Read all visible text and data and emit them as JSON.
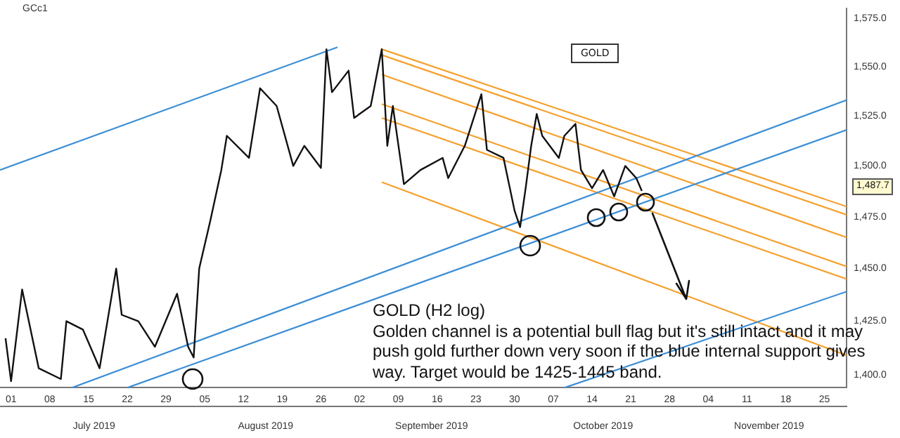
{
  "chart_data": {
    "type": "line",
    "title": "GCc1",
    "log": "y",
    "marker": "none",
    "xlim": [
      "2019-06-29",
      "2019-11-29"
    ],
    "ylim": [
      1394,
      1580
    ],
    "xticks": [
      {
        "value": "2019-07-01",
        "label": "01"
      },
      {
        "value": "2019-07-08",
        "label": "08"
      },
      {
        "value": "2019-07-15",
        "label": "15"
      },
      {
        "value": "2019-07-22",
        "label": "22"
      },
      {
        "value": "2019-07-29",
        "label": "29"
      },
      {
        "value": "2019-08-05",
        "label": "05"
      },
      {
        "value": "2019-08-12",
        "label": "12"
      },
      {
        "value": "2019-08-19",
        "label": "19"
      },
      {
        "value": "2019-08-26",
        "label": "26"
      },
      {
        "value": "2019-09-02",
        "label": "02"
      },
      {
        "value": "2019-09-09",
        "label": "09"
      },
      {
        "value": "2019-09-16",
        "label": "16"
      },
      {
        "value": "2019-09-23",
        "label": "23"
      },
      {
        "value": "2019-09-30",
        "label": "30"
      },
      {
        "value": "2019-10-07",
        "label": "07"
      },
      {
        "value": "2019-10-14",
        "label": "14"
      },
      {
        "value": "2019-10-21",
        "label": "21"
      },
      {
        "value": "2019-10-28",
        "label": "28"
      },
      {
        "value": "2019-11-04",
        "label": "04"
      },
      {
        "value": "2019-11-11",
        "label": "11"
      },
      {
        "value": "2019-11-18",
        "label": "18"
      },
      {
        "value": "2019-11-25",
        "label": "25"
      }
    ],
    "x2lim": [
      "2019-06-29",
      "2019-11-29"
    ],
    "x2ticks": [
      {
        "value": "2019-07-16",
        "label": "July 2019"
      },
      {
        "value": "2019-08-16",
        "label": "August 2019"
      },
      {
        "value": "2019-09-15",
        "label": "September 2019"
      },
      {
        "value": "2019-10-16",
        "label": "October 2019"
      },
      {
        "value": "2019-11-15",
        "label": "November 2019"
      }
    ],
    "yticks": [
      {
        "value": 1400,
        "label": "1,400.0"
      },
      {
        "value": 1425,
        "label": "1,425.0"
      },
      {
        "value": 1450,
        "label": "1,450.0"
      },
      {
        "value": 1475,
        "label": "1,475.0"
      },
      {
        "value": 1500,
        "label": "1,500.0"
      },
      {
        "value": 1525,
        "label": "1,525.0"
      },
      {
        "value": 1550,
        "label": "1,550.0"
      },
      {
        "value": 1575,
        "label": "1,575.0"
      }
    ],
    "series": [
      {
        "color": "#111111",
        "x": [
          "2019-06-30",
          "2019-07-01",
          "2019-07-03",
          "2019-07-06",
          "2019-07-10",
          "2019-07-11",
          "2019-07-14",
          "2019-07-17",
          "2019-07-20",
          "2019-07-21",
          "2019-07-24",
          "2019-07-27",
          "2019-07-31",
          "2019-08-02",
          "2019-08-03",
          "2019-08-04",
          "2019-08-06",
          "2019-08-08",
          "2019-08-09",
          "2019-08-13",
          "2019-08-15",
          "2019-08-18",
          "2019-08-21",
          "2019-08-23",
          "2019-08-26",
          "2019-08-27",
          "2019-08-28",
          "2019-08-31",
          "2019-09-01",
          "2019-09-04",
          "2019-09-06",
          "2019-09-07",
          "2019-09-08",
          "2019-09-10",
          "2019-09-13",
          "2019-09-17",
          "2019-09-18",
          "2019-09-21",
          "2019-09-24",
          "2019-09-25",
          "2019-09-28",
          "2019-09-30",
          "2019-10-01",
          "2019-10-02",
          "2019-10-03",
          "2019-10-04",
          "2019-10-05",
          "2019-10-08",
          "2019-10-09",
          "2019-10-11",
          "2019-10-12",
          "2019-10-14",
          "2019-10-16",
          "2019-10-18",
          "2019-10-20",
          "2019-10-22",
          "2019-10-23"
        ],
        "values": [
          1417,
          1397,
          1440,
          1403,
          1398,
          1425,
          1421,
          1403,
          1450,
          1428,
          1425,
          1413,
          1438,
          1413,
          1408,
          1450,
          1473,
          1498,
          1515,
          1504,
          1539,
          1530,
          1500,
          1510,
          1499,
          1559,
          1537,
          1548,
          1524,
          1530,
          1559,
          1510,
          1530,
          1491,
          1498,
          1504,
          1494,
          1510,
          1536,
          1508,
          1504,
          1478,
          1470,
          1489,
          1510,
          1526,
          1515,
          1504,
          1515,
          1521,
          1498,
          1489,
          1498,
          1485,
          1500,
          1494,
          1487.7
        ]
      },
      {
        "type": "line",
        "color": "#3d8fd6",
        "x": [
          "2019-06-29",
          "2019-08-29"
        ],
        "values": [
          1498,
          1560
        ]
      },
      {
        "type": "line",
        "color": "#3d8fd6",
        "x": [
          "2019-07-12",
          "2019-11-29"
        ],
        "values": [
          1394,
          1533
        ]
      },
      {
        "type": "line",
        "color": "#3d8fd6",
        "x": [
          "2019-07-22",
          "2019-11-29"
        ],
        "values": [
          1394,
          1518
        ]
      },
      {
        "type": "line",
        "color": "#3d8fd6",
        "x": [
          "2019-10-09",
          "2019-11-29"
        ],
        "values": [
          1394,
          1439
        ]
      },
      {
        "type": "line",
        "color": "#f5a02e",
        "x": [
          "2019-09-06",
          "2019-11-29"
        ],
        "values": [
          1559,
          1480
        ]
      },
      {
        "type": "line",
        "color": "#f5a02e",
        "x": [
          "2019-09-06",
          "2019-11-29"
        ],
        "values": [
          1556,
          1476
        ]
      },
      {
        "type": "line",
        "color": "#f5a02e",
        "x": [
          "2019-09-06",
          "2019-11-29"
        ],
        "values": [
          1546,
          1465
        ]
      },
      {
        "type": "line",
        "color": "#f5a02e",
        "x": [
          "2019-09-06",
          "2019-11-29"
        ],
        "values": [
          1531,
          1451
        ]
      },
      {
        "type": "line",
        "color": "#f5a02e",
        "x": [
          "2019-09-06",
          "2019-11-29"
        ],
        "values": [
          1524,
          1445
        ]
      },
      {
        "type": "line",
        "color": "#f5a02e",
        "x": [
          "2019-09-06",
          "2019-11-29"
        ],
        "values": [
          1492,
          1409
        ]
      }
    ],
    "annotations": [
      "GOLD",
      "GOLD (H2 log)",
      "Golden channel is a potential bull flag but it's still intact and it may push gold further down very soon if the blue internal support gives way. Target would be 1425-1445 band.",
      "1,487.7"
    ]
  }
}
